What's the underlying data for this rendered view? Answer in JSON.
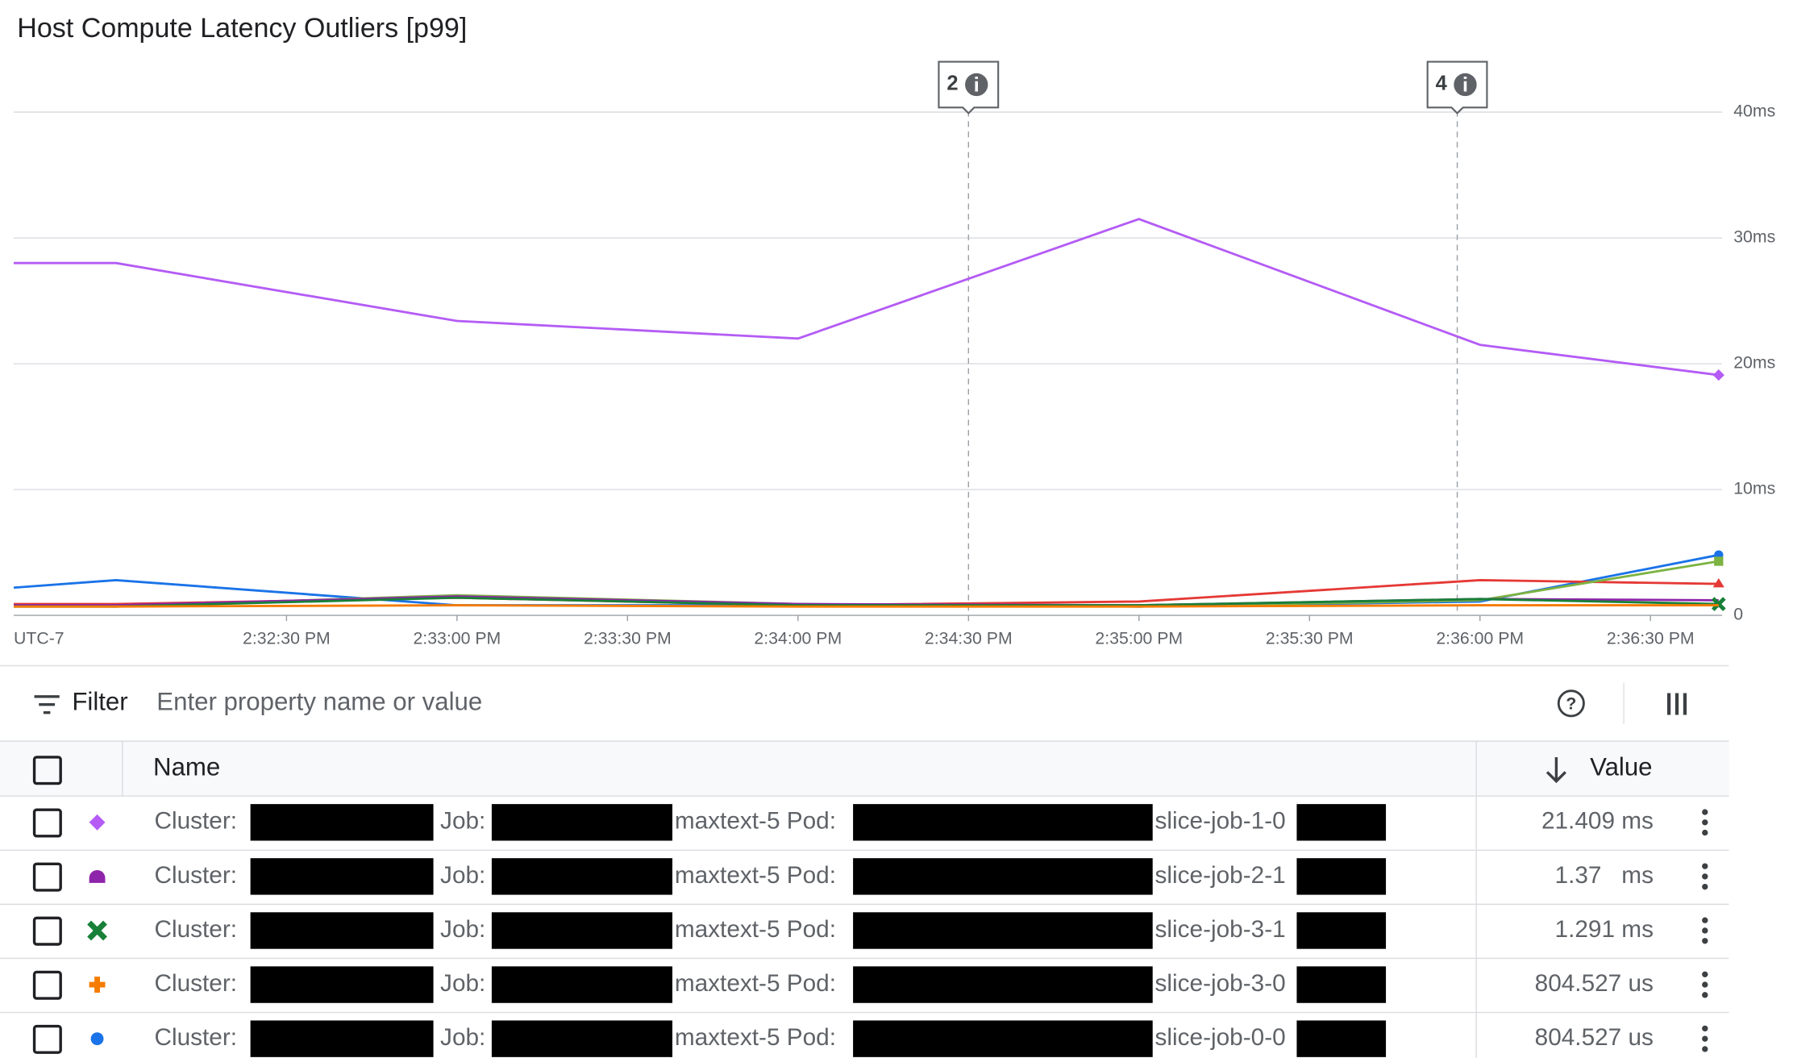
{
  "chart_data": {
    "type": "line",
    "title": "Host Compute Latency Outliers [p99]",
    "timezone": "UTC-7",
    "x": [
      "2:31:42 PM",
      "2:32:00 PM",
      "2:33:00 PM",
      "2:34:00 PM",
      "2:35:00 PM",
      "2:36:00 PM",
      "2:36:42 PM"
    ],
    "xlim": [
      "2:31:42 PM",
      "2:36:42 PM"
    ],
    "xticks": [
      "2:32:30 PM",
      "2:33:00 PM",
      "2:33:30 PM",
      "2:34:00 PM",
      "2:34:30 PM",
      "2:35:00 PM",
      "2:35:30 PM",
      "2:36:00 PM",
      "2:36:30 PM"
    ],
    "ylim": [
      0,
      40
    ],
    "yticks": [
      0,
      {
        "value": 10,
        "label": "10ms"
      },
      {
        "value": 20,
        "label": "20ms"
      },
      {
        "value": 30,
        "label": "30ms"
      },
      {
        "value": 40,
        "label": "40ms"
      }
    ],
    "grid": true,
    "series": [
      {
        "color": "#b45cf5",
        "marker": "diamond",
        "values": [
          28,
          28,
          23.4,
          22,
          31.5,
          21.5,
          19.1
        ]
      },
      {
        "color": "#1a73e8",
        "marker": "dot",
        "values": [
          2.2,
          2.8,
          0.8,
          0.8,
          0.7,
          1.1,
          4.8
        ]
      },
      {
        "color": "#e53935",
        "marker": "triangle",
        "values": [
          0.9,
          0.9,
          1.4,
          0.8,
          1.1,
          2.8,
          2.5
        ]
      },
      {
        "color": "#7cb342",
        "marker": "square",
        "values": [
          0.8,
          0.7,
          1.6,
          0.9,
          0.7,
          1.2,
          4.3
        ]
      },
      {
        "color": "#8e24aa",
        "values": [
          0.8,
          0.8,
          1.5,
          0.9,
          0.8,
          1.3,
          1.2
        ]
      },
      {
        "color": "#188038",
        "marker": "cross",
        "values": [
          0.7,
          0.7,
          1.4,
          0.8,
          0.8,
          1.3,
          0.9
        ]
      },
      {
        "color": "#f57c00",
        "values": [
          0.7,
          0.7,
          0.8,
          0.7,
          0.7,
          0.8,
          0.8
        ]
      }
    ],
    "annotations": [
      {
        "x": "2:34:30 PM",
        "label": "2"
      },
      {
        "x": "2:35:56 PM",
        "label": "4"
      }
    ]
  },
  "filter": {
    "label": "Filter",
    "placeholder": "Enter property name or value"
  },
  "table": {
    "headers": [
      "Name",
      "Value"
    ],
    "rows": [
      {
        "color": "#b45cf5",
        "marker": "diamond",
        "name": [
          "Cluster:",
          "Job:",
          "maxtext-5 Pod:",
          "slice-job-1-0"
        ],
        "value": "21.409 ms"
      },
      {
        "color": "#8e24aa",
        "marker": "dome",
        "name": [
          "Cluster:",
          "Job:",
          "maxtext-5 Pod:",
          "slice-job-2-1"
        ],
        "value": "1.37   ms"
      },
      {
        "color": "#188038",
        "marker": "cross",
        "name": [
          "Cluster:",
          "Job:",
          "maxtext-5 Pod:",
          "slice-job-3-1"
        ],
        "value": "1.291 ms"
      },
      {
        "color": "#f57c00",
        "marker": "plus",
        "name": [
          "Cluster:",
          "Job:",
          "maxtext-5 Pod:",
          "slice-job-3-0"
        ],
        "value": "804.527 us"
      },
      {
        "color": "#1a73e8",
        "marker": "dot",
        "name": [
          "Cluster:",
          "Job:",
          "maxtext-5 Pod:",
          "slice-job-0-0"
        ],
        "value": "804.527 us"
      }
    ]
  }
}
